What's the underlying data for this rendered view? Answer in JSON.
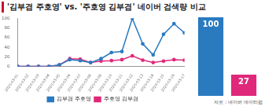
{
  "chart_data": [
    {
      "type": "line",
      "title": "'김부겸 주호영' vs. '주호영 김부겸' 네이버 검색량 비교",
      "categories": [
        "2020-03-01",
        "2020-03-02",
        "2020-03-03",
        "2020-03-04",
        "2020-03-05",
        "2020-03-06",
        "2020-03-07",
        "2020-03-08",
        "2020-03-09",
        "2020-03-10",
        "2020-03-11",
        "2020-03-12",
        "2020-03-13",
        "2020-03-14",
        "2020-03-15",
        "2020-03-16",
        "2020-03-17"
      ],
      "series": [
        {
          "name": "김부겸 주호영",
          "color": "#2a7ac0",
          "values": [
            0,
            0,
            0,
            0,
            3,
            14,
            12,
            8,
            16,
            29,
            31,
            100,
            47,
            24,
            67,
            89,
            70
          ]
        },
        {
          "name": "주호영 김부겸",
          "color": "#e0287a",
          "values": [
            0,
            0,
            0,
            0,
            3,
            16,
            15,
            8,
            11,
            12,
            14,
            22,
            13,
            8,
            11,
            14,
            13
          ]
        }
      ],
      "ylim": [
        0,
        100
      ],
      "yticks": [
        0,
        20,
        40,
        60,
        80,
        100
      ],
      "grid": false,
      "legend": "bottom",
      "marker": "circle"
    },
    {
      "type": "bar",
      "categories": [
        "김부겸 주호영",
        "주호영 김부겸"
      ],
      "values": [
        100,
        27
      ],
      "colors": [
        "#2a7ac0",
        "#e0287a"
      ],
      "ylim": [
        0,
        100
      ],
      "data_labels": true,
      "tick_labels": false,
      "grid": false,
      "annotations": [
        "자료 : 네이버 데이터랩"
      ]
    }
  ]
}
